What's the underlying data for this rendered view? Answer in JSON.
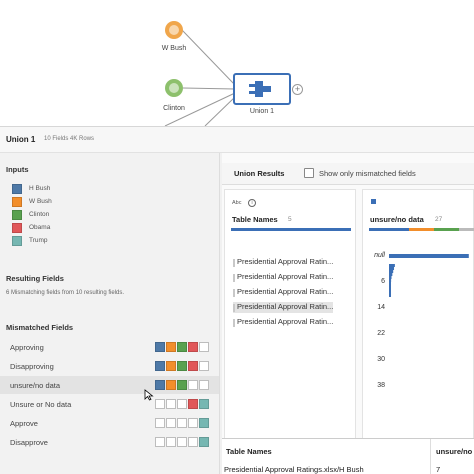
{
  "canvas": {
    "nodes": [
      {
        "label": "W Bush",
        "color": "#f0a64b"
      },
      {
        "label": "Clinton",
        "color": "#8dc06c"
      }
    ],
    "union_label": "Union 1",
    "add_icon": "+"
  },
  "header": {
    "step_name": "Union 1",
    "meta": "10 Fields  4K Rows"
  },
  "inputs": {
    "title": "Inputs",
    "items": [
      {
        "label": "H Bush",
        "color": "#4e79a7"
      },
      {
        "label": "W Bush",
        "color": "#f28e2b"
      },
      {
        "label": "Clinton",
        "color": "#59a14f"
      },
      {
        "label": "Obama",
        "color": "#e15759"
      },
      {
        "label": "Trump",
        "color": "#76b7b2"
      }
    ]
  },
  "resulting_fields": {
    "title": "Resulting Fields",
    "description": "6 Mismatching fields from 10 resulting fields."
  },
  "mismatched_fields": {
    "title": "Mismatched Fields",
    "rows": [
      {
        "label": "Approving",
        "cells": [
          true,
          true,
          true,
          true,
          false
        ]
      },
      {
        "label": "Disapproving",
        "cells": [
          true,
          true,
          true,
          true,
          false
        ]
      },
      {
        "label": "unsure/no data",
        "cells": [
          true,
          true,
          true,
          false,
          false
        ]
      },
      {
        "label": "Unsure or No data",
        "cells": [
          false,
          false,
          false,
          true,
          true
        ]
      },
      {
        "label": "Approve",
        "cells": [
          false,
          false,
          false,
          false,
          true
        ]
      },
      {
        "label": "Disapprove",
        "cells": [
          false,
          false,
          false,
          false,
          true
        ]
      }
    ]
  },
  "union_results": {
    "tab": "Union Results",
    "checkbox_label": "Show only mismatched fields"
  },
  "table_names_card": {
    "type_tag": "Abc",
    "info_icon": "i",
    "title": "Table Names",
    "count": "5",
    "values": [
      "Presidential Approval Ratin...",
      "Presidential Approval Ratin...",
      "Presidential Approval Ratin...",
      "Presidential Approval Ratin...",
      "Presidential Approval Ratin..."
    ]
  },
  "unsure_card": {
    "type_tag": "#",
    "title": "unsure/no data",
    "count": "27",
    "axis_labels": [
      "null",
      "6",
      "14",
      "22",
      "30",
      "38"
    ],
    "histogram": [
      0.95,
      0.07,
      0.06,
      0.05,
      0.04,
      0.03,
      0.025,
      0.02,
      0.02,
      0.015,
      0.01,
      0.01
    ]
  },
  "grid": {
    "headers": [
      "Table Names",
      "unsure/no data"
    ],
    "row": [
      "Presidential Approval Ratings.xlsx/H Bush",
      "7"
    ]
  }
}
